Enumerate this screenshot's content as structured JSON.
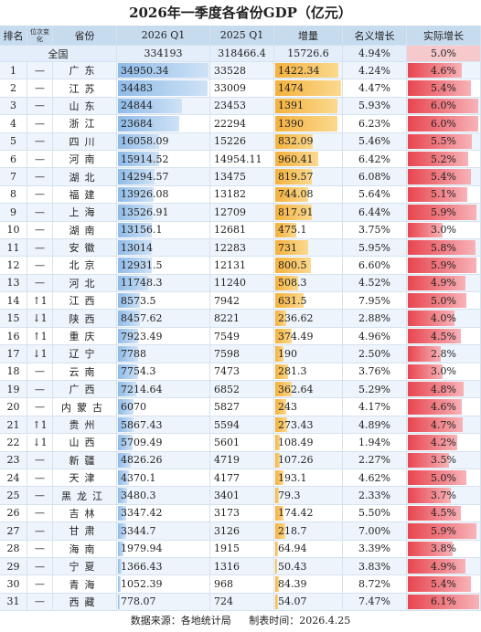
{
  "header": {
    "title": "2026年一季度各省份GDP（亿元）"
  },
  "table": {
    "columns": [
      "排名",
      "位次变化",
      "省份",
      "2026 Q1",
      "2025 Q1",
      "增量",
      "名义增长",
      "实际增长"
    ],
    "national": [
      "全国",
      334193,
      318466.4,
      15726.6,
      "4.94%",
      "5.0%"
    ],
    "rows": [
      [
        1,
        "—",
        "广东",
        34950.34,
        33528,
        1422.34,
        "4.24%",
        "4.6%"
      ],
      [
        2,
        "—",
        "江苏",
        34483,
        33009,
        1474,
        "4.47%",
        "5.4%"
      ],
      [
        3,
        "—",
        "山东",
        24844,
        23453,
        1391,
        "5.93%",
        "6.0%"
      ],
      [
        4,
        "—",
        "浙江",
        23684,
        22294,
        1390,
        "6.23%",
        "6.0%"
      ],
      [
        5,
        "—",
        "四川",
        16058.09,
        15226,
        832.09,
        "5.46%",
        "5.5%"
      ],
      [
        6,
        "—",
        "河南",
        15914.52,
        14954.11,
        960.41,
        "6.42%",
        "5.2%"
      ],
      [
        7,
        "—",
        "湖北",
        14294.57,
        13475,
        819.57,
        "6.08%",
        "5.4%"
      ],
      [
        8,
        "—",
        "福建",
        13926.08,
        13182,
        744.08,
        "5.64%",
        "5.1%"
      ],
      [
        9,
        "—",
        "上海",
        13526.91,
        12709,
        817.91,
        "6.44%",
        "5.9%"
      ],
      [
        10,
        "—",
        "湖南",
        13156.1,
        12681,
        475.1,
        "3.75%",
        "3.0%"
      ],
      [
        11,
        "—",
        "安徽",
        13014,
        12283,
        731,
        "5.95%",
        "5.8%"
      ],
      [
        12,
        "—",
        "北京",
        12931.5,
        12131,
        800.5,
        "6.60%",
        "5.9%"
      ],
      [
        13,
        "—",
        "河北",
        11748.3,
        11240,
        508.3,
        "4.52%",
        "4.9%"
      ],
      [
        14,
        "↑1",
        "江西",
        8573.5,
        7942,
        631.5,
        "7.95%",
        "5.0%"
      ],
      [
        15,
        "↓1",
        "陕西",
        8457.62,
        8221,
        236.62,
        "2.88%",
        "4.0%"
      ],
      [
        16,
        "↑1",
        "重庆",
        7923.49,
        7549,
        374.49,
        "4.96%",
        "4.5%"
      ],
      [
        17,
        "↓1",
        "辽宁",
        7788,
        7598,
        190,
        "2.50%",
        "2.8%"
      ],
      [
        18,
        "—",
        "云南",
        7754.3,
        7473,
        281.3,
        "3.76%",
        "3.0%"
      ],
      [
        19,
        "—",
        "广西",
        7214.64,
        6852,
        362.64,
        "5.29%",
        "4.8%"
      ],
      [
        20,
        "—",
        "内蒙古",
        6070,
        5827,
        243,
        "4.17%",
        "4.6%"
      ],
      [
        21,
        "↑1",
        "贵州",
        5867.43,
        5594,
        273.43,
        "4.89%",
        "4.7%"
      ],
      [
        22,
        "↓1",
        "山西",
        5709.49,
        5601,
        108.49,
        "1.94%",
        "4.2%"
      ],
      [
        23,
        "—",
        "新疆",
        4826.26,
        4719,
        107.26,
        "2.27%",
        "3.5%"
      ],
      [
        24,
        "—",
        "天津",
        4370.1,
        4177,
        193.1,
        "4.62%",
        "5.0%"
      ],
      [
        25,
        "—",
        "黑龙江",
        3480.3,
        3401,
        79.3,
        "2.33%",
        "3.7%"
      ],
      [
        26,
        "—",
        "吉林",
        3347.42,
        3173,
        174.42,
        "5.50%",
        "4.5%"
      ],
      [
        27,
        "—",
        "甘肃",
        3344.7,
        3126,
        218.7,
        "7.00%",
        "5.9%"
      ],
      [
        28,
        "—",
        "海南",
        1979.94,
        1915,
        64.94,
        "3.39%",
        "3.8%"
      ],
      [
        29,
        "—",
        "宁夏",
        1366.43,
        1316,
        50.43,
        "3.83%",
        "4.9%"
      ],
      [
        30,
        "—",
        "青海",
        1052.39,
        968,
        84.39,
        "8.72%",
        "5.4%"
      ],
      [
        31,
        "—",
        "西藏",
        778.07,
        724,
        54.07,
        "7.47%",
        "6.1%"
      ]
    ]
  },
  "footer": {
    "source": "数据来源：各地统计局",
    "date": "制表时间：2026.4.25"
  }
}
